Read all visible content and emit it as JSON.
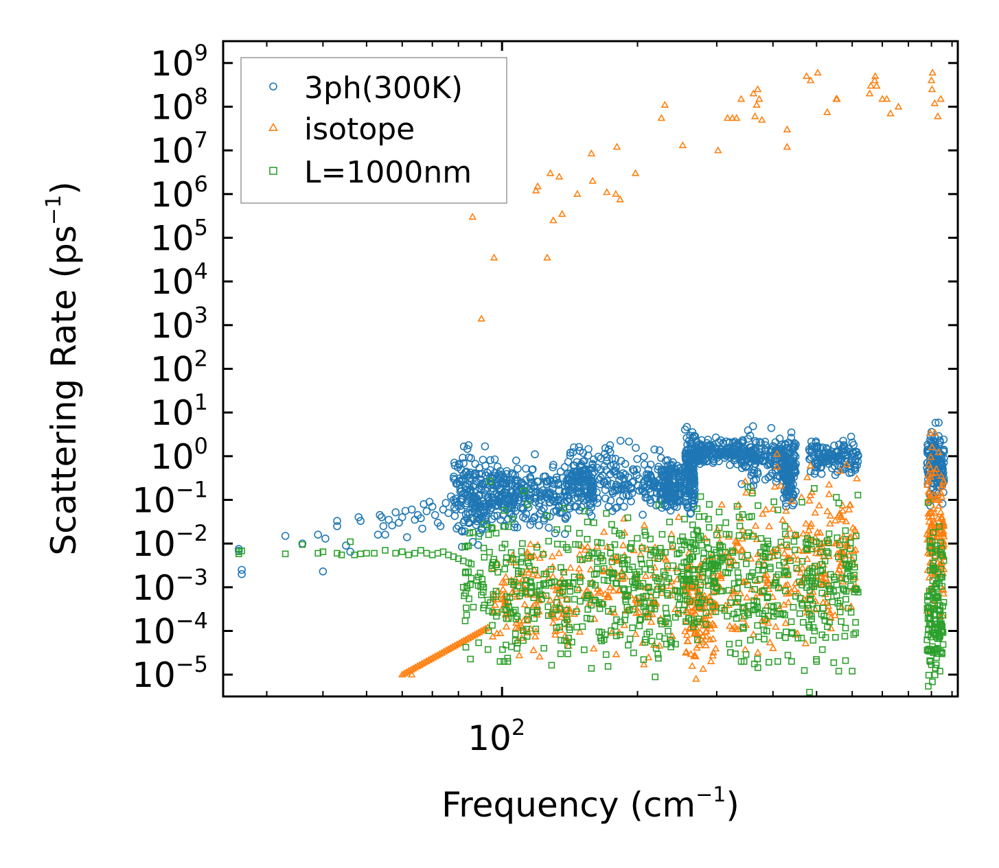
{
  "chart_data": {
    "type": "scatter",
    "xscale": "log",
    "yscale": "log",
    "xlabel": "Frequency (cm",
    "xlabel_exp": "−1",
    "xlabel_close": ")",
    "ylabel": "Scattering Rate (ps",
    "ylabel_exp": "−1",
    "ylabel_close": ")",
    "xlim": [
      24,
      1030
    ],
    "ylim_exp": [
      -5.5,
      9.5
    ],
    "x_major_ticks": [
      {
        "value": 100,
        "base": "10",
        "exp": "2"
      }
    ],
    "x_minor_ticks": [
      30,
      40,
      50,
      60,
      70,
      80,
      90,
      200,
      300,
      400,
      500,
      600,
      700,
      800,
      900,
      1000
    ],
    "y_ticks": [
      {
        "exp_value": 9,
        "base": "10",
        "exp": "9"
      },
      {
        "exp_value": 8,
        "base": "10",
        "exp": "8"
      },
      {
        "exp_value": 7,
        "base": "10",
        "exp": "7"
      },
      {
        "exp_value": 6,
        "base": "10",
        "exp": "6"
      },
      {
        "exp_value": 5,
        "base": "10",
        "exp": "5"
      },
      {
        "exp_value": 4,
        "base": "10",
        "exp": "4"
      },
      {
        "exp_value": 3,
        "base": "10",
        "exp": "3"
      },
      {
        "exp_value": 2,
        "base": "10",
        "exp": "2"
      },
      {
        "exp_value": 1,
        "base": "10",
        "exp": "1"
      },
      {
        "exp_value": 0,
        "base": "10",
        "exp": "0"
      },
      {
        "exp_value": -1,
        "base": "10",
        "exp": "−1"
      },
      {
        "exp_value": -2,
        "base": "10",
        "exp": "−2"
      },
      {
        "exp_value": -3,
        "base": "10",
        "exp": "−3"
      },
      {
        "exp_value": -4,
        "base": "10",
        "exp": "−4"
      },
      {
        "exp_value": -5,
        "base": "10",
        "exp": "−5"
      }
    ],
    "legend_position": "top-left",
    "series": [
      {
        "name": "3ph(300K)",
        "marker": "circle",
        "color": "#1f77b4",
        "points": [
          [
            26.0,
            0.0075
          ],
          [
            26.0,
            0.0068
          ],
          [
            26.4,
            0.0025
          ],
          [
            26.4,
            0.002
          ],
          [
            33.0,
            0.015
          ],
          [
            36.0,
            0.01
          ],
          [
            39.0,
            0.016
          ],
          [
            40.0,
            0.0023
          ],
          [
            40.5,
            0.013
          ],
          [
            43.0,
            0.033
          ],
          [
            43.0,
            0.025
          ],
          [
            45.0,
            0.009
          ],
          [
            46.0,
            0.0065
          ],
          [
            48.0,
            0.04
          ],
          [
            48.5,
            0.033
          ],
          [
            53.0,
            0.016
          ],
          [
            53.5,
            0.045
          ],
          [
            54.0,
            0.04
          ],
          [
            54.5,
            0.025
          ],
          [
            55.0,
            0.016
          ],
          [
            56.0,
            0.035
          ],
          [
            57.0,
            0.026
          ],
          [
            58.0,
            0.052
          ],
          [
            59.0,
            0.03
          ],
          [
            60.0,
            0.04
          ],
          [
            61.0,
            0.056
          ],
          [
            61.5,
            0.014
          ],
          [
            63.0,
            0.06
          ],
          [
            64.0,
            0.035
          ],
          [
            65.0,
            0.045
          ],
          [
            66.0,
            0.038
          ],
          [
            66.5,
            0.022
          ],
          [
            67.0,
            0.08
          ],
          [
            68.0,
            0.055
          ],
          [
            69.0,
            0.09
          ],
          [
            70.0,
            0.07
          ],
          [
            71.0,
            0.045
          ],
          [
            72.0,
            0.03
          ],
          [
            73.0,
            0.025
          ],
          [
            74.0,
            0.06
          ],
          [
            75.0,
            0.085
          ],
          [
            76.0,
            0.05
          ],
          [
            77.0,
            0.12
          ],
          [
            78.0,
            0.1
          ],
          [
            79.0,
            0.06
          ],
          [
            80.0,
            0.025
          ],
          [
            81.0,
            0.09
          ],
          [
            82.0,
            0.14
          ],
          [
            83.0,
            0.075
          ],
          [
            84.0,
            0.05
          ],
          [
            85.0,
            0.16
          ],
          [
            86.0,
            0.11
          ],
          [
            87.0,
            0.07
          ],
          [
            88.0,
            0.04
          ],
          [
            89.0,
            0.13
          ],
          [
            90.0,
            0.18
          ]
        ],
        "bands": [
          {
            "x0": 78,
            "x1": 92,
            "center": 0.12,
            "spread": 0.5
          },
          {
            "x0": 92,
            "x1": 108,
            "center": 0.15,
            "spread": 0.35
          },
          {
            "x0": 108,
            "x1": 140,
            "center": 0.13,
            "spread": 0.35
          },
          {
            "x0": 140,
            "x1": 160,
            "center": 0.22,
            "spread": 0.35
          },
          {
            "x0": 160,
            "x1": 225,
            "center": 0.3,
            "spread": 0.35
          },
          {
            "x0": 225,
            "x1": 250,
            "center": 0.22,
            "spread": 0.25
          },
          {
            "x0": 255,
            "x1": 268,
            "center": 0.5,
            "spread": 0.5
          },
          {
            "x0": 268,
            "x1": 340,
            "center": 1.3,
            "spread": 0.15
          },
          {
            "x0": 340,
            "x1": 420,
            "center": 0.9,
            "spread": 0.25
          },
          {
            "x0": 420,
            "x1": 450,
            "center": 0.5,
            "spread": 0.35
          },
          {
            "x0": 480,
            "x1": 620,
            "center": 0.9,
            "spread": 0.2
          },
          {
            "x0": 880,
            "x1": 960,
            "center": 0.6,
            "spread": 0.35
          }
        ]
      },
      {
        "name": "isotope",
        "marker": "triangle",
        "color": "#ff7f0e",
        "points": [
          [
            86.0,
            300000
          ],
          [
            90.0,
            1400
          ],
          [
            95.0,
            800000
          ],
          [
            96.0,
            35000
          ],
          [
            119.0,
            1200000
          ],
          [
            120.0,
            1500000
          ],
          [
            126.0,
            35000
          ],
          [
            128.0,
            3000000
          ],
          [
            130.0,
            250000
          ],
          [
            134.0,
            2500000
          ],
          [
            136.0,
            350000
          ],
          [
            147.0,
            1000000
          ],
          [
            158.0,
            8500000
          ],
          [
            159.0,
            2000000
          ],
          [
            171.0,
            1100000
          ],
          [
            179.0,
            1000000
          ],
          [
            180.0,
            12000000
          ],
          [
            183.0,
            750000
          ],
          [
            198.0,
            3000000
          ],
          [
            226.0,
            55000000
          ],
          [
            230.0,
            110000000
          ],
          [
            252.0,
            13000000
          ],
          [
            302.0,
            10000000
          ],
          [
            317.0,
            55000000
          ],
          [
            325.0,
            55000000
          ],
          [
            332.0,
            55000000
          ],
          [
            340.0,
            150000000
          ],
          [
            362.0,
            200000000
          ],
          [
            365.0,
            60000000
          ],
          [
            368.0,
            110000000
          ],
          [
            370.0,
            250000000
          ],
          [
            373.0,
            150000000
          ],
          [
            378.0,
            50000000
          ],
          [
            430.0,
            30000000
          ],
          [
            430.0,
            12000000
          ],
          [
            475.0,
            500000000
          ],
          [
            485.0,
            400000000
          ],
          [
            503.0,
            600000000
          ],
          [
            528.0,
            75000000
          ],
          [
            553.0,
            150000000
          ],
          [
            555.0,
            150000000
          ],
          [
            656.0,
            200000000
          ],
          [
            660.0,
            300000000
          ],
          [
            673.0,
            400000000
          ],
          [
            675.0,
            500000000
          ],
          [
            680.0,
            300000000
          ],
          [
            700.0,
            150000000
          ],
          [
            716.0,
            150000000
          ],
          [
            730.0,
            70000000
          ],
          [
            760.0,
            100000000
          ],
          [
            900.0,
            400000000
          ],
          [
            903.0,
            250000000
          ],
          [
            905.0,
            600000000
          ],
          [
            915.0,
            120000000
          ],
          [
            930.0,
            60000000
          ],
          [
            944.0,
            150000000
          ],
          [
            360.0,
            0.16
          ],
          [
            63.0,
            1e-05
          ]
        ],
        "curve": {
          "x0": 60,
          "x1": 93,
          "y0": 1e-05,
          "y1": 0.00012
        },
        "bands": [
          {
            "x0": 95,
            "x1": 140,
            "center": 0.0006,
            "spread": 0.6
          },
          {
            "x0": 140,
            "x1": 250,
            "center": 0.001,
            "spread": 0.7
          },
          {
            "x0": 255,
            "x1": 300,
            "center": 0.0003,
            "spread": 0.6
          },
          {
            "x0": 300,
            "x1": 460,
            "center": 0.003,
            "spread": 0.9
          },
          {
            "x0": 460,
            "x1": 620,
            "center": 0.006,
            "spread": 0.9
          },
          {
            "x0": 880,
            "x1": 960,
            "center": 0.02,
            "spread": 0.9
          }
        ]
      },
      {
        "name": "L=1000nm",
        "marker": "square",
        "color": "#2ca02c",
        "points": [
          [
            26.0,
            0.0065
          ],
          [
            26.0,
            0.0058
          ],
          [
            26.4,
            0.0068
          ],
          [
            33.0,
            0.0058
          ],
          [
            36.0,
            0.0095
          ],
          [
            39.0,
            0.006
          ],
          [
            40.0,
            0.0065
          ],
          [
            43.0,
            0.006
          ],
          [
            44.0,
            0.0055
          ],
          [
            46.0,
            0.011
          ],
          [
            47.0,
            0.0055
          ],
          [
            48.5,
            0.0058
          ],
          [
            50.0,
            0.006
          ],
          [
            52.0,
            0.006
          ],
          [
            55.0,
            0.007
          ],
          [
            58.0,
            0.006
          ],
          [
            60.0,
            0.0065
          ],
          [
            62.0,
            0.0055
          ],
          [
            64.0,
            0.006
          ],
          [
            66.0,
            0.007
          ],
          [
            68.0,
            0.006
          ],
          [
            70.0,
            0.0055
          ],
          [
            72.0,
            0.006
          ],
          [
            74.0,
            0.0065
          ],
          [
            76.0,
            0.0055
          ],
          [
            78.0,
            0.005
          ],
          [
            80.0,
            0.0045
          ],
          [
            82.0,
            0.004
          ],
          [
            99.0,
            2e-05
          ],
          [
            101.0,
            2e-05
          ],
          [
            103.0,
            2e-05
          ],
          [
            107.0,
            6e-05
          ],
          [
            108.0,
            4e-05
          ],
          [
            135.0,
            3e-05
          ],
          [
            140.0,
            3e-05
          ],
          [
            220.0,
            4e-05
          ],
          [
            232.0,
            5e-05
          ],
          [
            243.0,
            5e-05
          ],
          [
            320.0,
            5e-05
          ],
          [
            330.0,
            3e-05
          ],
          [
            340.0,
            2e-05
          ],
          [
            345.0,
            2e-05
          ],
          [
            410.0,
            2e-05
          ],
          [
            440.0,
            2e-05
          ],
          [
            500.0,
            2e-05
          ],
          [
            560.0,
            1.2e-05
          ],
          [
            600.0,
            1.2e-05
          ],
          [
            940.0,
            1.2e-05
          ],
          [
            950.0,
            3e-05
          ]
        ],
        "bands": [
          {
            "x0": 82,
            "x1": 120,
            "center": 0.0011,
            "spread": 0.8
          },
          {
            "x0": 120,
            "x1": 180,
            "center": 0.0011,
            "spread": 0.8
          },
          {
            "x0": 180,
            "x1": 250,
            "center": 0.0012,
            "spread": 0.8
          },
          {
            "x0": 250,
            "x1": 320,
            "center": 0.0025,
            "spread": 0.7
          },
          {
            "x0": 320,
            "x1": 460,
            "center": 0.0012,
            "spread": 0.9
          },
          {
            "x0": 460,
            "x1": 620,
            "center": 0.0012,
            "spread": 0.9
          },
          {
            "x0": 880,
            "x1": 960,
            "center": 0.0004,
            "spread": 0.8
          }
        ]
      }
    ]
  }
}
